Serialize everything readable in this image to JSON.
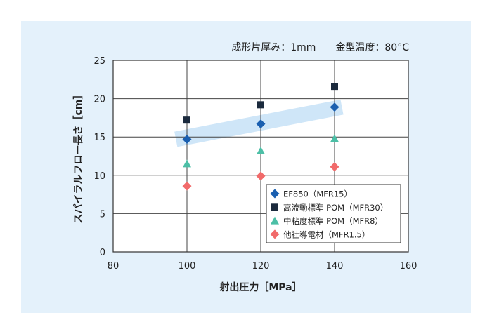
{
  "chart_data": {
    "type": "scatter",
    "annotation": "成形片厚み：1mm　　金型温度：80°C",
    "xlabel": "射出圧力［MPa］",
    "ylabel": "スパイラルフロー長さ［cm］",
    "xlim": [
      80,
      160
    ],
    "ylim": [
      0,
      25
    ],
    "xticks": [
      "80",
      "100",
      "120",
      "140",
      "160"
    ],
    "yticks": [
      "0",
      "5",
      "10",
      "15",
      "20",
      "25"
    ],
    "grid": true,
    "legend_position": "bottom-right",
    "series": [
      {
        "name": "EF850（MFR15）",
        "marker": "diamond",
        "color": "#1a5fb0",
        "x": [
          100,
          120,
          140
        ],
        "y": [
          14.7,
          16.7,
          18.9
        ]
      },
      {
        "name": "高流動標準 POM（MFR30）",
        "marker": "square",
        "color": "#1b2a3d",
        "x": [
          100,
          120,
          140
        ],
        "y": [
          17.2,
          19.2,
          21.6
        ]
      },
      {
        "name": "中粘度標準 POM（MFR8）",
        "marker": "triangle",
        "color": "#4cbfa6",
        "x": [
          100,
          120,
          140
        ],
        "y": [
          11.5,
          13.2,
          14.8
        ]
      },
      {
        "name": "他社導電材（MFR1.5）",
        "marker": "diamond",
        "color": "#f16a6a",
        "x": [
          100,
          120,
          140
        ],
        "y": [
          8.6,
          9.9,
          11.1
        ]
      }
    ],
    "highlight_band": {
      "color": "#cfe6f8",
      "from": [
        97,
        14.7
      ],
      "to": [
        142,
        18.9
      ]
    }
  }
}
